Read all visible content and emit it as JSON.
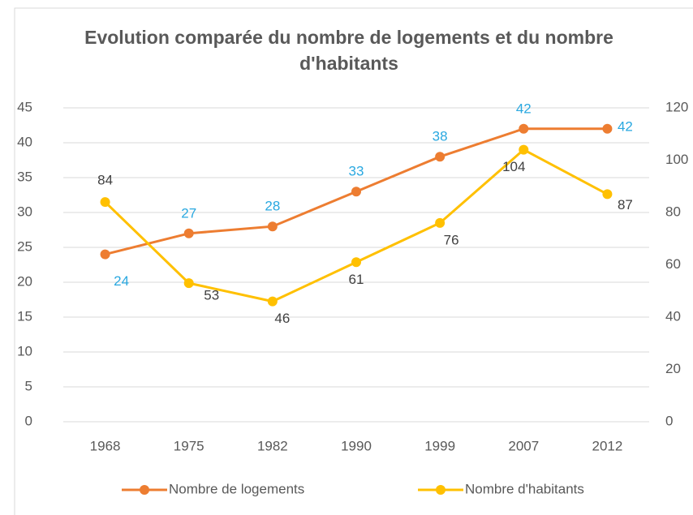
{
  "chart_data": {
    "type": "line",
    "title": "Evolution comparée du nombre de logements et du nombre d'habitants",
    "categories": [
      "1968",
      "1975",
      "1982",
      "1990",
      "1999",
      "2007",
      "2012"
    ],
    "series": [
      {
        "name": "Nombre de logements",
        "color": "#ed7d31",
        "values": [
          24,
          27,
          28,
          33,
          38,
          42,
          42
        ],
        "label_color": "#29a8e0"
      },
      {
        "name": "Nombre d'habitants",
        "color": "#ffc000",
        "values": [
          84,
          53,
          46,
          61,
          76,
          104,
          87
        ],
        "axis": "y2",
        "label_color": "#404040"
      }
    ],
    "ylim": [
      0,
      45
    ],
    "yticks": [
      0,
      5,
      10,
      15,
      20,
      25,
      30,
      35,
      40,
      45
    ],
    "y2lim": [
      0,
      120
    ],
    "y2ticks": [
      0,
      20,
      40,
      60,
      80,
      100,
      120
    ],
    "grid": true,
    "legend": "bottom"
  }
}
